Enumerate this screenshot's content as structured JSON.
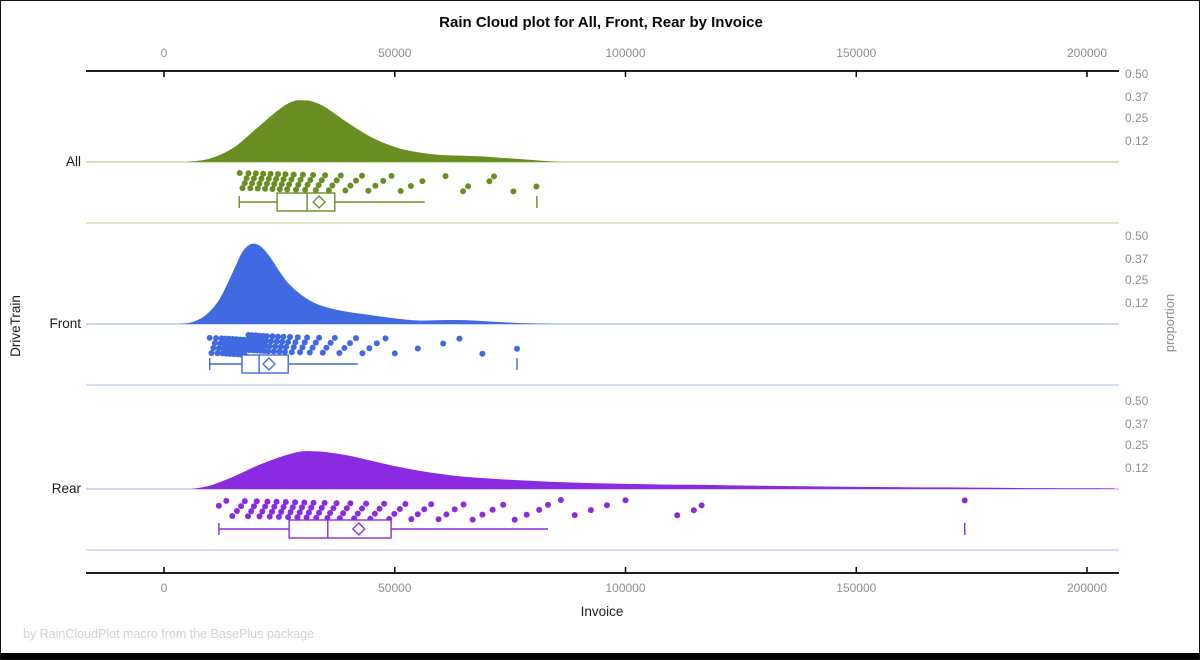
{
  "title": "Rain Cloud plot for All, Front, Rear by Invoice",
  "footnote": "by RainCloudPlot macro from the BasePlus package",
  "axes": {
    "x": {
      "label": "Invoice",
      "min": 0,
      "max": 200000,
      "ticks": [
        {
          "value": 0,
          "label": "0"
        },
        {
          "value": 50000,
          "label": "50000"
        },
        {
          "value": 100000,
          "label": "100000"
        },
        {
          "value": 150000,
          "label": "150000"
        },
        {
          "value": 200000,
          "label": "200000"
        }
      ]
    },
    "y": {
      "label": "DriveTrain",
      "categories": [
        "All",
        "Front",
        "Rear"
      ]
    },
    "proportion": {
      "label": "proportion",
      "ticks": [
        {
          "value": 0.5,
          "label": "0.50"
        },
        {
          "value": 0.37,
          "label": "0.37"
        },
        {
          "value": 0.25,
          "label": "0.25"
        },
        {
          "value": 0.12,
          "label": "0.12"
        }
      ]
    }
  },
  "chart_data": {
    "type": "raincloud",
    "subtype": "half-violin + strip + box, horizontal",
    "x_variable": "Invoice",
    "group_variable": "DriveTrain",
    "x_range": [
      0,
      200000
    ],
    "proportion_axis_ticks": [
      0.12,
      0.25,
      0.37,
      0.5
    ],
    "groups": [
      {
        "name": "All",
        "color": "#6B8E23",
        "light_color": "#ccd7a6",
        "density": [
          [
            5000,
            0
          ],
          [
            10000,
            0.02
          ],
          [
            15000,
            0.08
          ],
          [
            20000,
            0.19
          ],
          [
            25000,
            0.3
          ],
          [
            28000,
            0.345
          ],
          [
            30000,
            0.35
          ],
          [
            32000,
            0.345
          ],
          [
            35000,
            0.31
          ],
          [
            40000,
            0.22
          ],
          [
            45000,
            0.14
          ],
          [
            50000,
            0.085
          ],
          [
            55000,
            0.055
          ],
          [
            60000,
            0.04
          ],
          [
            65000,
            0.035
          ],
          [
            70000,
            0.03
          ],
          [
            74000,
            0.022
          ],
          [
            78000,
            0.015
          ],
          [
            83000,
            0.005
          ],
          [
            86000,
            0
          ]
        ],
        "box": {
          "whisker_low": 16300,
          "q1": 24500,
          "median": 31000,
          "mean": 33600,
          "q3": 37000,
          "whisker_high": 56500,
          "far_outliers": [
            80800
          ]
        },
        "points": [
          16400,
          17000,
          17500,
          17900,
          18300,
          18700,
          19100,
          19500,
          19900,
          20300,
          20700,
          21100,
          21500,
          21900,
          22300,
          22700,
          23100,
          23500,
          23900,
          24300,
          24700,
          25100,
          25500,
          25900,
          26300,
          26700,
          27100,
          27600,
          28100,
          28600,
          29100,
          29600,
          30100,
          30600,
          31100,
          31700,
          32300,
          32900,
          33500,
          34200,
          34900,
          35700,
          36500,
          37400,
          38300,
          39300,
          40400,
          41600,
          42900,
          44300,
          45800,
          47500,
          49300,
          51300,
          53500,
          56000,
          61000,
          64800,
          65900,
          70500,
          71500,
          75700,
          80700
        ]
      },
      {
        "name": "Front",
        "color": "#4169E1",
        "light_color": "#bac9f0",
        "density": [
          [
            3000,
            0
          ],
          [
            6000,
            0.01
          ],
          [
            9000,
            0.05
          ],
          [
            12000,
            0.14
          ],
          [
            15000,
            0.3
          ],
          [
            17000,
            0.41
          ],
          [
            19000,
            0.455
          ],
          [
            21000,
            0.44
          ],
          [
            23000,
            0.38
          ],
          [
            25000,
            0.3
          ],
          [
            27000,
            0.23
          ],
          [
            30000,
            0.16
          ],
          [
            33000,
            0.115
          ],
          [
            36000,
            0.09
          ],
          [
            40000,
            0.068
          ],
          [
            45000,
            0.05
          ],
          [
            50000,
            0.032
          ],
          [
            55000,
            0.02
          ],
          [
            60000,
            0.022
          ],
          [
            65000,
            0.022
          ],
          [
            70000,
            0.015
          ],
          [
            75000,
            0.008
          ],
          [
            80000,
            0.003
          ],
          [
            85000,
            0
          ]
        ],
        "box": {
          "whisker_low": 9900,
          "q1": 16900,
          "median": 20600,
          "mean": 22750,
          "q3": 26900,
          "whisker_high": 42000,
          "far_outliers": [
            76500
          ]
        },
        "points": [
          9900,
          10300,
          10700,
          11000,
          11300,
          11600,
          11900,
          12200,
          12500,
          12700,
          12900,
          13100,
          13300,
          13500,
          13700,
          13900,
          14100,
          14300,
          14500,
          14700,
          14900,
          15100,
          15300,
          15500,
          15700,
          15900,
          16100,
          16300,
          16500,
          16700,
          16900,
          17100,
          17300,
          17500,
          17700,
          17900,
          18100,
          18300,
          18500,
          18700,
          18900,
          19100,
          19300,
          19500,
          19700,
          19900,
          20100,
          20300,
          20500,
          20700,
          20900,
          21100,
          21300,
          21500,
          21700,
          21900,
          22100,
          22300,
          22600,
          22900,
          23200,
          23500,
          23800,
          24100,
          24400,
          24700,
          25000,
          25300,
          25600,
          25900,
          26200,
          26500,
          26900,
          27300,
          27700,
          28100,
          28500,
          29000,
          29500,
          30000,
          30500,
          31000,
          31600,
          32200,
          32900,
          33600,
          34400,
          35200,
          36100,
          37000,
          38000,
          39100,
          40300,
          41600,
          43000,
          44500,
          46100,
          48000,
          50000,
          55000,
          60500,
          64000,
          69000,
          76500
        ]
      },
      {
        "name": "Rear",
        "color": "#8A2BE2",
        "light_color": "#d9bdf4",
        "density": [
          [
            6000,
            0
          ],
          [
            10000,
            0.02
          ],
          [
            15000,
            0.07
          ],
          [
            20000,
            0.13
          ],
          [
            25000,
            0.18
          ],
          [
            29000,
            0.21
          ],
          [
            32000,
            0.215
          ],
          [
            35000,
            0.21
          ],
          [
            40000,
            0.19
          ],
          [
            45000,
            0.16
          ],
          [
            50000,
            0.13
          ],
          [
            55000,
            0.105
          ],
          [
            60000,
            0.085
          ],
          [
            65000,
            0.07
          ],
          [
            70000,
            0.06
          ],
          [
            75000,
            0.052
          ],
          [
            80000,
            0.046
          ],
          [
            85000,
            0.04
          ],
          [
            90000,
            0.036
          ],
          [
            95000,
            0.032
          ],
          [
            100000,
            0.029
          ],
          [
            105000,
            0.027
          ],
          [
            110000,
            0.025
          ],
          [
            115000,
            0.024
          ],
          [
            120000,
            0.022
          ],
          [
            125000,
            0.02
          ],
          [
            130000,
            0.018
          ],
          [
            140000,
            0.015
          ],
          [
            150000,
            0.012
          ],
          [
            160000,
            0.01
          ],
          [
            170000,
            0.009
          ],
          [
            180000,
            0.007
          ],
          [
            190000,
            0.005
          ],
          [
            200000,
            0.004
          ],
          [
            206000,
            0.003
          ]
        ],
        "box": {
          "whisker_low": 11900,
          "q1": 27100,
          "median": 35500,
          "mean": 42200,
          "q3": 49200,
          "whisker_high": 83200,
          "far_outliers": [
            173500
          ]
        },
        "points": [
          11900,
          13500,
          14800,
          15800,
          16700,
          17500,
          18200,
          18900,
          19500,
          20100,
          20700,
          21300,
          21900,
          22400,
          22900,
          23400,
          23900,
          24400,
          24900,
          25400,
          25900,
          26400,
          26900,
          27400,
          27900,
          28400,
          28900,
          29400,
          29900,
          30400,
          30900,
          31400,
          31900,
          32400,
          33000,
          33600,
          34200,
          34800,
          35400,
          36000,
          36700,
          37400,
          38100,
          38800,
          39600,
          40400,
          41200,
          42000,
          42900,
          43800,
          44700,
          45700,
          46700,
          47700,
          48800,
          49900,
          51100,
          52300,
          53600,
          55000,
          56400,
          57900,
          59500,
          61200,
          63000,
          64900,
          66900,
          69000,
          71200,
          73500,
          76000,
          78600,
          81300,
          83200,
          86000,
          89000,
          92500,
          96000,
          100000,
          111200,
          114800,
          116500,
          173500
        ]
      }
    ]
  }
}
